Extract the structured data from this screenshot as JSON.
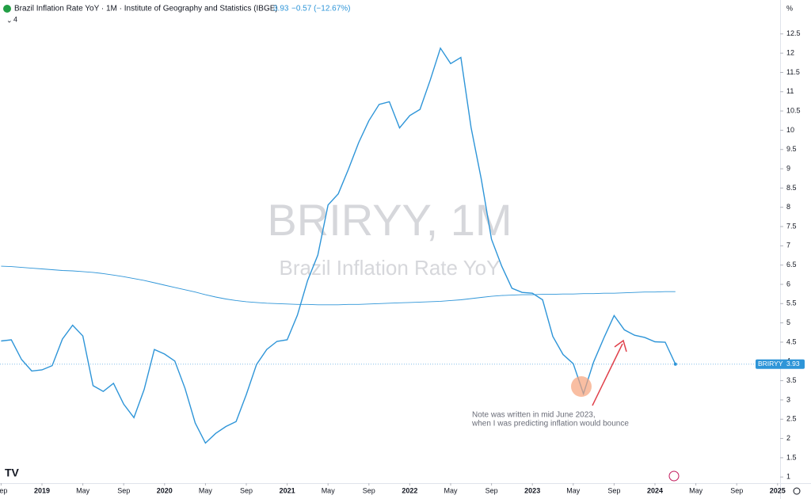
{
  "chart_data": {
    "type": "line",
    "title": "Brazil Inflation Rate YoY · 1M · Institute of Geography and Statistics (IBGE)",
    "last_value": "3.93",
    "change": "−0.57 (−12.67%)",
    "indicator_count": "4",
    "unit": "%",
    "watermark": "BRIRYY, 1M",
    "watermark_subtitle": "Brazil Inflation Rate YoY",
    "symbol": "BRIRYY",
    "annotation": [
      "Note was written in mid June 2023,",
      "when I was predicting inflation would bounce"
    ],
    "x": [
      "2018-09",
      "2018-10",
      "2018-11",
      "2018-12",
      "2019-01",
      "2019-02",
      "2019-03",
      "2019-04",
      "2019-05",
      "2019-06",
      "2019-07",
      "2019-08",
      "2019-09",
      "2019-10",
      "2019-11",
      "2019-12",
      "2020-01",
      "2020-02",
      "2020-03",
      "2020-04",
      "2020-05",
      "2020-06",
      "2020-07",
      "2020-08",
      "2020-09",
      "2020-10",
      "2020-11",
      "2020-12",
      "2021-01",
      "2021-02",
      "2021-03",
      "2021-04",
      "2021-05",
      "2021-06",
      "2021-07",
      "2021-08",
      "2021-09",
      "2021-10",
      "2021-11",
      "2021-12",
      "2022-01",
      "2022-02",
      "2022-03",
      "2022-04",
      "2022-05",
      "2022-06",
      "2022-07",
      "2022-08",
      "2022-09",
      "2022-10",
      "2022-11",
      "2022-12",
      "2023-01",
      "2023-02",
      "2023-03",
      "2023-04",
      "2023-05",
      "2023-06",
      "2023-07",
      "2023-08",
      "2023-09",
      "2023-10",
      "2023-11",
      "2023-12",
      "2024-01",
      "2024-02",
      "2024-03"
    ],
    "series": [
      {
        "color": "#2e95d8",
        "values": [
          4.53,
          4.56,
          4.05,
          3.75,
          3.78,
          3.89,
          4.58,
          4.94,
          4.66,
          3.37,
          3.22,
          3.43,
          2.89,
          2.54,
          3.27,
          4.31,
          4.19,
          4.01,
          3.3,
          2.4,
          1.88,
          2.13,
          2.31,
          2.44,
          3.14,
          3.92,
          4.31,
          4.52,
          4.56,
          5.2,
          6.1,
          6.76,
          8.06,
          8.35,
          8.99,
          9.68,
          10.25,
          10.67,
          10.74,
          10.06,
          10.38,
          10.54,
          11.3,
          12.13,
          11.73,
          11.89,
          10.07,
          8.73,
          7.17,
          6.47,
          5.9,
          5.79,
          5.77,
          5.6,
          4.65,
          4.18,
          3.94,
          3.16,
          3.99,
          4.61,
          5.19,
          4.82,
          4.68,
          4.62,
          4.51,
          4.5,
          3.93
        ]
      },
      {
        "color": "#2e95d8",
        "values": [
          6.47,
          6.46,
          6.44,
          6.42,
          6.4,
          6.38,
          6.36,
          6.35,
          6.33,
          6.31,
          6.28,
          6.24,
          6.2,
          6.15,
          6.1,
          6.04,
          5.98,
          5.92,
          5.86,
          5.8,
          5.73,
          5.67,
          5.62,
          5.58,
          5.55,
          5.53,
          5.51,
          5.5,
          5.49,
          5.48,
          5.48,
          5.47,
          5.47,
          5.47,
          5.48,
          5.48,
          5.49,
          5.5,
          5.51,
          5.52,
          5.53,
          5.54,
          5.55,
          5.56,
          5.58,
          5.6,
          5.63,
          5.66,
          5.69,
          5.71,
          5.72,
          5.73,
          5.73,
          5.74,
          5.74,
          5.75,
          5.75,
          5.76,
          5.76,
          5.77,
          5.77,
          5.78,
          5.79,
          5.8,
          5.8,
          5.81,
          5.81
        ]
      }
    ],
    "ylim": [
      0.84,
      13.38
    ],
    "yticks": [
      1,
      1.5,
      2,
      2.5,
      3,
      3.5,
      4,
      4.5,
      5,
      5.5,
      6,
      6.5,
      7,
      7.5,
      8,
      8.5,
      9,
      9.5,
      10,
      10.5,
      11,
      11.5,
      12,
      12.5
    ],
    "xticks": [
      {
        "value": "2018-09",
        "label": "Sep"
      },
      {
        "value": "2019-01",
        "label": "2019"
      },
      {
        "value": "2019-05",
        "label": "May"
      },
      {
        "value": "2019-09",
        "label": "Sep"
      },
      {
        "value": "2020-01",
        "label": "2020"
      },
      {
        "value": "2020-05",
        "label": "May"
      },
      {
        "value": "2020-09",
        "label": "Sep"
      },
      {
        "value": "2021-01",
        "label": "2021"
      },
      {
        "value": "2021-05",
        "label": "May"
      },
      {
        "value": "2021-09",
        "label": "Sep"
      },
      {
        "value": "2022-01",
        "label": "2022"
      },
      {
        "value": "2022-05",
        "label": "May"
      },
      {
        "value": "2022-09",
        "label": "Sep"
      },
      {
        "value": "2023-01",
        "label": "2023"
      },
      {
        "value": "2023-05",
        "label": "May"
      },
      {
        "value": "2023-09",
        "label": "Sep"
      },
      {
        "value": "2024-01",
        "label": "2024"
      },
      {
        "value": "2024-05",
        "label": "May"
      },
      {
        "value": "2024-09",
        "label": "Sep"
      },
      {
        "value": "2025-01",
        "label": "2025"
      }
    ]
  }
}
